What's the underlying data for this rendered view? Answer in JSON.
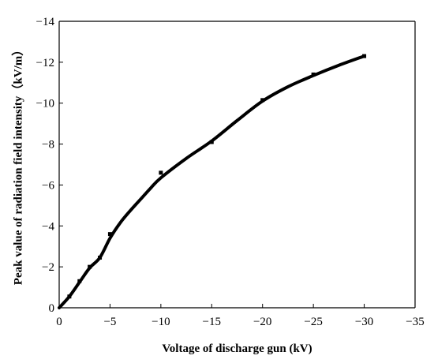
{
  "chart_data": {
    "type": "line",
    "title": "",
    "xlabel": "Voltage of discharge gun (kV)",
    "ylabel": "Peak value of radiation field intensity（kV/m）",
    "xlim": [
      0,
      -35
    ],
    "ylim": [
      0,
      -14
    ],
    "xticks": [
      0,
      -5,
      -10,
      -15,
      -20,
      -25,
      -30,
      -35
    ],
    "yticks": [
      0,
      -2,
      -4,
      -6,
      -8,
      -10,
      -12,
      -14
    ],
    "xtick_labels": [
      "0",
      "−5",
      "−10",
      "−15",
      "−20",
      "−25",
      "−30",
      "−35"
    ],
    "ytick_labels": [
      "0",
      "−2",
      "−4",
      "−6",
      "−8",
      "−10",
      "−12",
      "−14"
    ],
    "grid": false,
    "series": [
      {
        "markers": [
          {
            "x": -1,
            "y": -0.55
          },
          {
            "x": -2,
            "y": -1.3
          },
          {
            "x": -3,
            "y": -2.0
          },
          {
            "x": -4,
            "y": -2.45
          },
          {
            "x": -5,
            "y": -3.6
          },
          {
            "x": -10,
            "y": -6.6
          },
          {
            "x": -15,
            "y": -8.1
          },
          {
            "x": -20,
            "y": -10.15
          },
          {
            "x": -25,
            "y": -11.4
          },
          {
            "x": -30,
            "y": -12.3
          }
        ],
        "curve": [
          {
            "x": 0,
            "y": 0
          },
          {
            "x": -1,
            "y": -0.55
          },
          {
            "x": -2,
            "y": -1.25
          },
          {
            "x": -3,
            "y": -1.95
          },
          {
            "x": -4,
            "y": -2.45
          },
          {
            "x": -5,
            "y": -3.4
          },
          {
            "x": -6,
            "y": -4.15
          },
          {
            "x": -7,
            "y": -4.75
          },
          {
            "x": -8,
            "y": -5.3
          },
          {
            "x": -9,
            "y": -5.85
          },
          {
            "x": -10,
            "y": -6.35
          },
          {
            "x": -12.5,
            "y": -7.3
          },
          {
            "x": -15,
            "y": -8.15
          },
          {
            "x": -17.5,
            "y": -9.15
          },
          {
            "x": -20,
            "y": -10.1
          },
          {
            "x": -22.5,
            "y": -10.8
          },
          {
            "x": -25,
            "y": -11.35
          },
          {
            "x": -27.5,
            "y": -11.85
          },
          {
            "x": -30,
            "y": -12.3
          }
        ]
      }
    ]
  }
}
